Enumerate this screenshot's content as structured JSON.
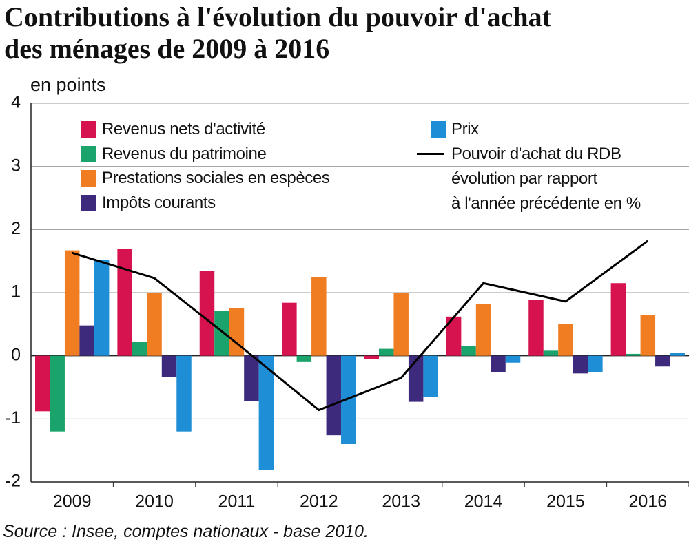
{
  "chart_data": {
    "type": "bar",
    "title": "Contributions à l'évolution du pouvoir d'achat\ndes ménages de 2009 à 2016",
    "y_label": "en points",
    "source": "Source : Insee, comptes nationaux - base 2010.",
    "categories": [
      "2009",
      "2010",
      "2011",
      "2012",
      "2013",
      "2014",
      "2015",
      "2016"
    ],
    "ylim": [
      -2,
      4
    ],
    "yticks": [
      -2,
      -1,
      0,
      1,
      2,
      3,
      4
    ],
    "grid": true,
    "series": [
      {
        "name": "Revenus nets d'activité",
        "color": "#d6124f",
        "values": [
          -0.88,
          1.69,
          1.34,
          0.84,
          -0.05,
          0.62,
          0.88,
          1.15
        ]
      },
      {
        "name": "Revenus du patrimoine",
        "color": "#1aa36a",
        "values": [
          -1.2,
          0.22,
          0.71,
          -0.1,
          0.11,
          0.15,
          0.08,
          0.03
        ]
      },
      {
        "name": "Prestations sociales en espèces",
        "color": "#f07d22",
        "values": [
          1.67,
          1.0,
          0.75,
          1.24,
          1.0,
          0.82,
          0.5,
          0.64
        ]
      },
      {
        "name": "Impôts courants",
        "color": "#3d2a7c",
        "values": [
          0.48,
          -0.34,
          -0.72,
          -1.26,
          -0.73,
          -0.26,
          -0.28,
          -0.17
        ]
      },
      {
        "name": "Prix",
        "color": "#1e8ed6",
        "values": [
          1.52,
          -1.2,
          -1.81,
          -1.4,
          -0.65,
          -0.11,
          -0.26,
          0.04
        ]
      },
      {
        "name": "Pouvoir d'achat du RDB\névolution par rapport\nà l'année précédente en %",
        "color": "#000000",
        "type": "line",
        "values": [
          1.63,
          1.23,
          0.2,
          -0.86,
          -0.35,
          1.15,
          0.86,
          1.82
        ]
      }
    ]
  }
}
